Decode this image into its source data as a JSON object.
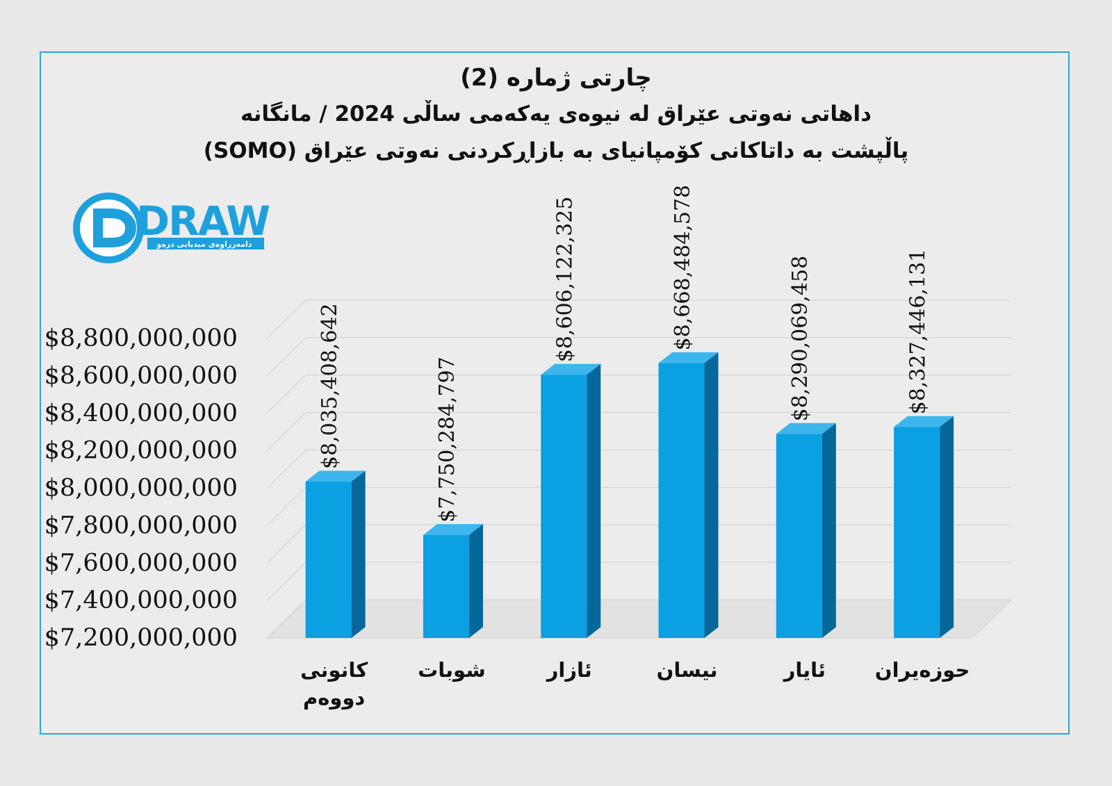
{
  "title": {
    "line1": "چارتی ژمارە (2)",
    "line2": "داهاتی نەوتی عێراق لە نیوەی یەکەمی ساڵی 2024 / مانگانە",
    "line3": "پاڵپشت بە داتاکانی کۆمپانیای بە بازاڕکردنی نەوتی عێراق (SOMO)"
  },
  "logo": {
    "text": "DRAW",
    "subtitle": "دامەزراوەی میدیایی درەو"
  },
  "colors": {
    "bar_front": "#0aa0e2",
    "bar_side": "#05679a",
    "bar_top": "#3cb6ec",
    "frame": "#2aa6d8"
  },
  "chart_data": {
    "type": "bar",
    "categories": [
      "کانونی دووەم",
      "شوبات",
      "ئازار",
      "نیسان",
      "ئایار",
      "حوزەیران"
    ],
    "values": [
      8035408642,
      7750284797,
      8606122325,
      8668484578,
      8290069458,
      8327446131
    ],
    "value_labels": [
      "$8,035,408,642",
      "$7,750,284,797",
      "$8,606,122,325",
      "$8,668,484,578",
      "$8,290,069,458",
      "$8,327,446,131"
    ],
    "ylim": [
      7200000000,
      8800000000
    ],
    "yticks": [
      8800000000,
      8600000000,
      8400000000,
      8200000000,
      8000000000,
      7800000000,
      7600000000,
      7400000000,
      7200000000
    ],
    "ytick_labels": [
      "$8,800,000,000",
      "$8,600,000,000",
      "$8,400,000,000",
      "$8,200,000,000",
      "$8,000,000,000",
      "$7,800,000,000",
      "$7,600,000,000",
      "$7,400,000,000",
      "$7,200,000,000"
    ],
    "grid": true,
    "legend": "none",
    "style": "3d"
  }
}
